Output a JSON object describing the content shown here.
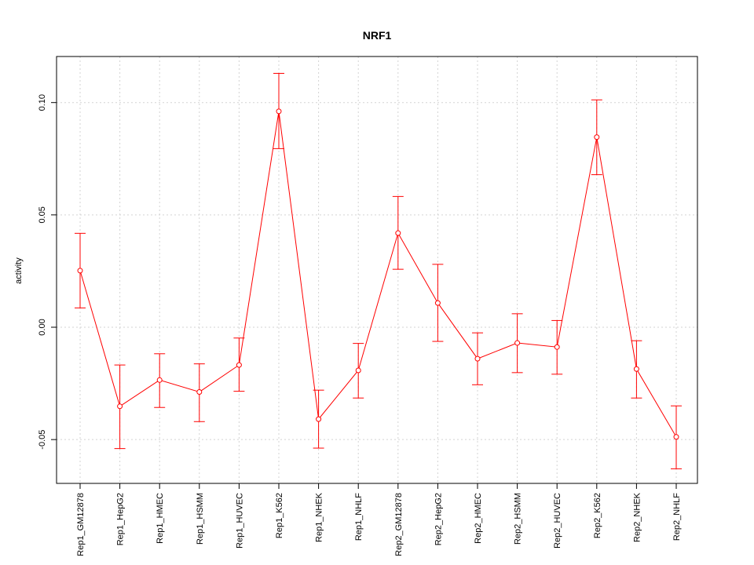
{
  "chart_data": {
    "type": "line",
    "title": "NRF1",
    "xlabel": "",
    "ylabel": "activity",
    "categories": [
      "Rep1_GM12878",
      "Rep1_HepG2",
      "Rep1_HMEC",
      "Rep1_HSMM",
      "Rep1_HUVEC",
      "Rep1_K562",
      "Rep1_NHEK",
      "Rep1_NHLF",
      "Rep2_GM12878",
      "Rep2_HepG2",
      "Rep2_HMEC",
      "Rep2_HSMM",
      "Rep2_HUVEC",
      "Rep2_K562",
      "Rep2_NHEK",
      "Rep2_NHLF"
    ],
    "values": [
      0.0252,
      -0.0352,
      -0.0235,
      -0.0288,
      -0.0168,
      0.0961,
      -0.0409,
      -0.0192,
      0.0419,
      0.0108,
      -0.014,
      -0.007,
      -0.0088,
      0.0846,
      -0.0186,
      -0.0488
    ],
    "error_low": [
      0.0086,
      -0.054,
      -0.0357,
      -0.042,
      -0.0285,
      0.0795,
      -0.0538,
      -0.0315,
      0.0258,
      -0.0063,
      -0.0256,
      -0.0202,
      -0.0209,
      0.0679,
      -0.0315,
      -0.063
    ],
    "error_high": [
      0.0418,
      -0.0168,
      -0.0118,
      -0.0163,
      -0.0048,
      0.113,
      -0.028,
      -0.0072,
      0.0582,
      0.028,
      -0.0025,
      0.006,
      0.003,
      0.1012,
      -0.006,
      -0.035
    ],
    "yticks": [
      -0.05,
      0.0,
      0.05,
      0.1
    ],
    "ytick_labels": [
      "-0.05",
      "0.00",
      "0.05",
      "0.10"
    ],
    "ylim": [
      -0.0695,
      0.1205
    ],
    "grid": true,
    "colors": {
      "series": "#ff0000",
      "grid": "#d3d3d3",
      "axis": "#000000"
    }
  }
}
